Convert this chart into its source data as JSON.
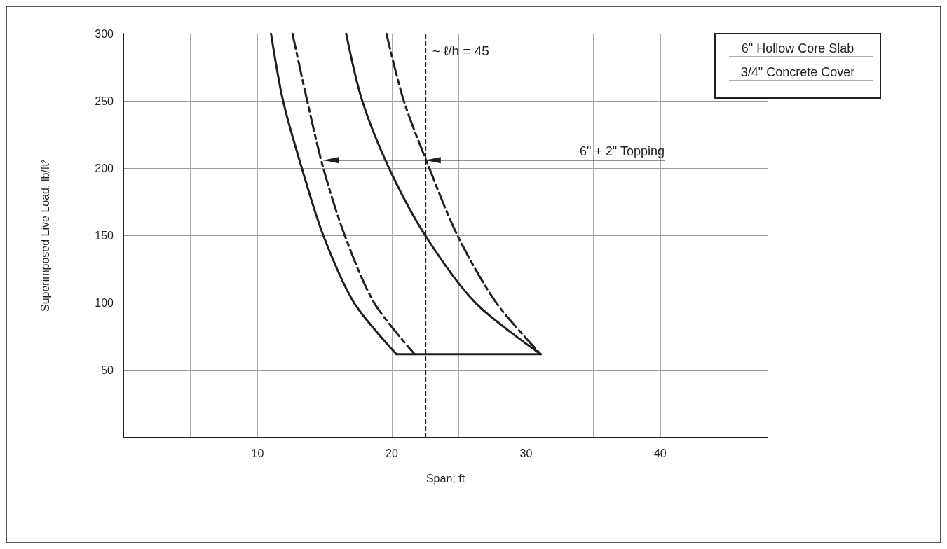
{
  "chart_data": {
    "type": "line",
    "xlabel": "Span, ft",
    "ylabel": "Superimposed Live Load, lb/ft²",
    "xlim": [
      0,
      48
    ],
    "ylim": [
      0,
      300
    ],
    "xticks": [
      {
        "value": 5,
        "label": null
      },
      10,
      {
        "value": 15,
        "label": null
      },
      20,
      {
        "value": 25,
        "label": null
      },
      30,
      {
        "value": 35,
        "label": null
      },
      40
    ],
    "yticks": [
      50,
      100,
      150,
      200,
      250,
      300
    ],
    "grid": true,
    "marker": "none",
    "series": [
      {
        "color": "#231f20",
        "line_style": "solid",
        "x": [
          11.0,
          11.9,
          13.3,
          14.9,
          17.2,
          20.35
        ],
        "values": [
          300,
          250,
          200,
          150,
          100,
          62
        ]
      },
      {
        "color": "#231f20",
        "line_style": "dashed",
        "x": [
          12.6,
          13.7,
          14.9,
          16.5,
          18.7,
          21.7
        ],
        "values": [
          300,
          250,
          200,
          150,
          100,
          62
        ]
      },
      {
        "color": "#231f20",
        "line_style": "solid",
        "x": [
          16.6,
          17.8,
          19.8,
          22.5,
          26.25,
          31.1
        ],
        "values": [
          300,
          250,
          200,
          150,
          100,
          62
        ]
      },
      {
        "color": "#231f20",
        "line_style": "dashed",
        "x": [
          19.6,
          20.9,
          22.8,
          24.9,
          27.8,
          31.1
        ],
        "values": [
          300,
          250,
          200,
          150,
          100,
          62
        ]
      },
      {
        "color": "#231f20",
        "line_style": "solid",
        "x": [
          20.35,
          31.1
        ],
        "values": [
          62,
          62
        ]
      }
    ],
    "ref_lines": [
      {
        "axis": "x",
        "value": 22.5,
        "line_style": "dashed",
        "color": "#231f20"
      }
    ],
    "annotations": [
      "6\" Hollow Core Slab",
      "3/4\" Concrete Cover",
      "~ ℓ/h = 45",
      {
        "text": "6\" + 2\" Topping",
        "x": 14.9,
        "y": 206
      }
    ]
  }
}
